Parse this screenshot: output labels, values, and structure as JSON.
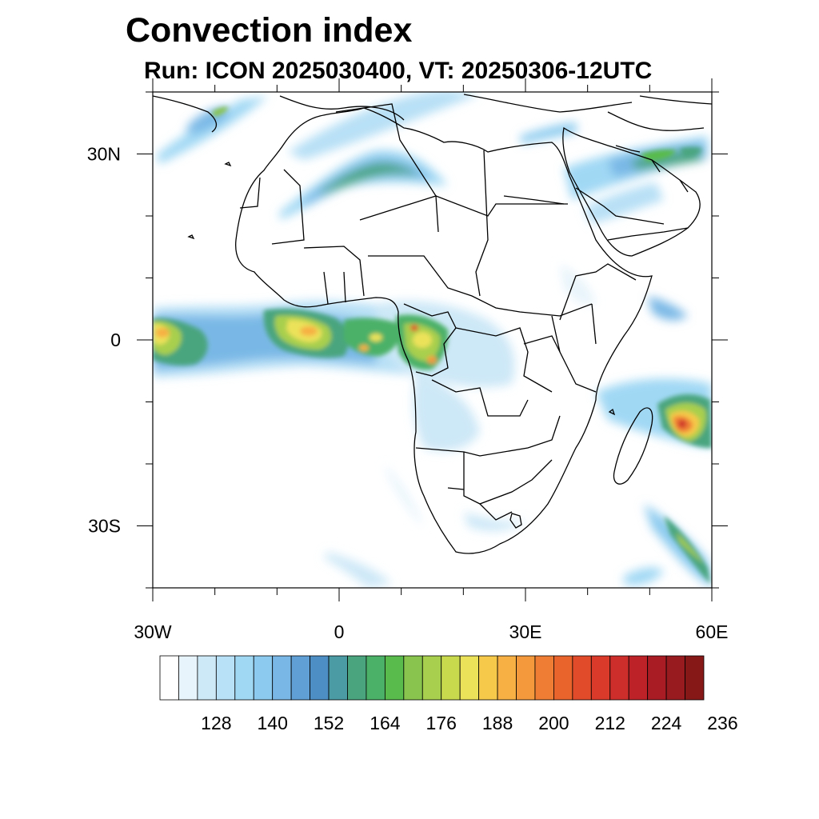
{
  "title": "Convection index",
  "subtitle": "Run: ICON 2025030400,  VT: 20250306-12UTC",
  "map": {
    "lon_range": [
      -30,
      60
    ],
    "lat_range": [
      -40,
      40
    ],
    "lon_ticks": [
      {
        "value": -30,
        "label": "30W"
      },
      {
        "value": 0,
        "label": "0"
      },
      {
        "value": 30,
        "label": "30E"
      },
      {
        "value": 60,
        "label": "60E"
      }
    ],
    "lat_ticks": [
      {
        "value": 30,
        "label": "30N"
      },
      {
        "value": 0,
        "label": "0"
      },
      {
        "value": -30,
        "label": "30S"
      }
    ],
    "features": "coastlines and country borders (black lines); shaded convection index field"
  },
  "colorbar": {
    "labels": [
      "128",
      "140",
      "152",
      "164",
      "176",
      "188",
      "200",
      "212",
      "224",
      "236"
    ],
    "colors": [
      "#ffffff",
      "#e8f4fb",
      "#cde8f7",
      "#b8e0f6",
      "#a0d8f4",
      "#8ccbef",
      "#79b8e6",
      "#5f9fd6",
      "#4d8ec4",
      "#4a9ba3",
      "#4aa57e",
      "#4bb168",
      "#59bb4c",
      "#88c44e",
      "#a8cf4d",
      "#c8d94e",
      "#ece25a",
      "#f6c94a",
      "#f6b043",
      "#f49a3c",
      "#ef7e34",
      "#e9632d",
      "#e14b2a",
      "#d93a2a",
      "#cd2e2b",
      "#bd2229",
      "#aa1c23",
      "#981b20",
      "#861818"
    ]
  }
}
